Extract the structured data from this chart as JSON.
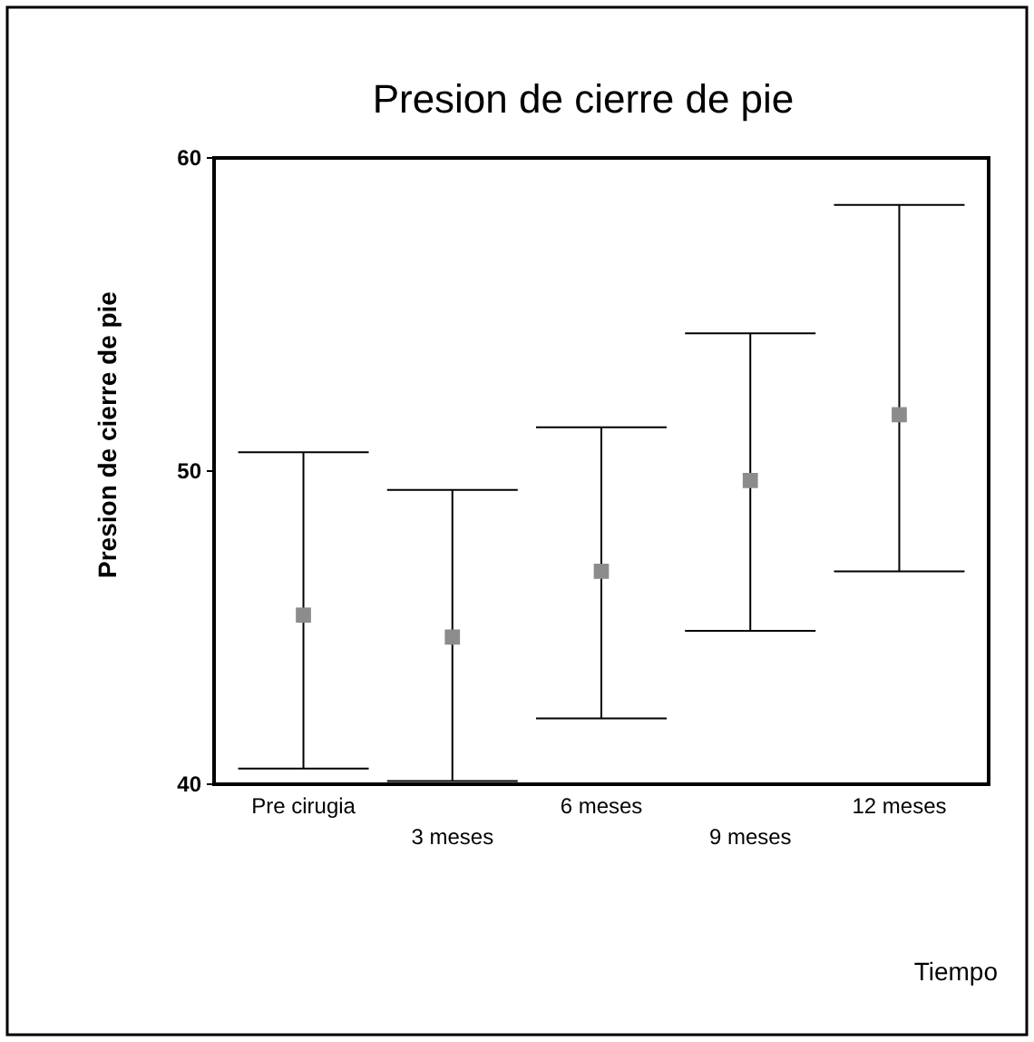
{
  "chart_data": {
    "type": "scatter",
    "title": "Presion de cierre de pie",
    "annotations": [
      "Tiempo"
    ],
    "ylabel": "Presion de cierre de pie",
    "categories": [
      "Pre cirugia",
      "3 meses",
      "6 meses",
      "9 meses",
      "12 meses"
    ],
    "values": [
      45.4,
      44.7,
      46.8,
      49.7,
      51.8
    ],
    "errors": [
      [
        40.5,
        50.6
      ],
      [
        40.1,
        49.4
      ],
      [
        42.1,
        51.4
      ],
      [
        44.9,
        54.4
      ],
      [
        46.8,
        58.5
      ]
    ],
    "color": "#8c8c8c",
    "marker": "square",
    "ylim": [
      40,
      60
    ],
    "yticks": [
      40,
      50,
      60
    ],
    "grid": false
  }
}
